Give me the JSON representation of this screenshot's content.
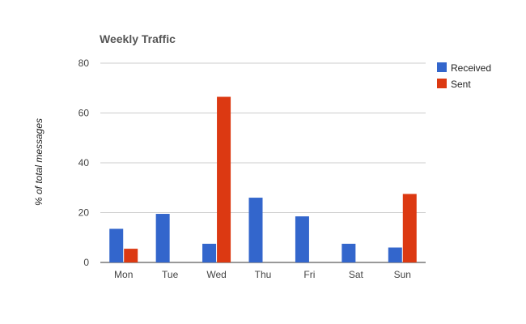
{
  "chart_data": {
    "type": "bar",
    "title": "Weekly Traffic",
    "xlabel": "",
    "ylabel": "% of total messages",
    "categories": [
      "Mon",
      "Tue",
      "Wed",
      "Thu",
      "Fri",
      "Sat",
      "Sun"
    ],
    "series": [
      {
        "name": "Received",
        "color": "#3366cc",
        "values": [
          13.5,
          19.5,
          7.5,
          26,
          18.5,
          7.5,
          6
        ]
      },
      {
        "name": "Sent",
        "color": "#dc3912",
        "values": [
          5.5,
          0,
          66.5,
          0,
          0,
          0,
          27.5
        ]
      }
    ],
    "ylim": [
      0,
      80
    ],
    "yticks": [
      0,
      20,
      40,
      60,
      80
    ],
    "grid": true,
    "legend": "right"
  }
}
